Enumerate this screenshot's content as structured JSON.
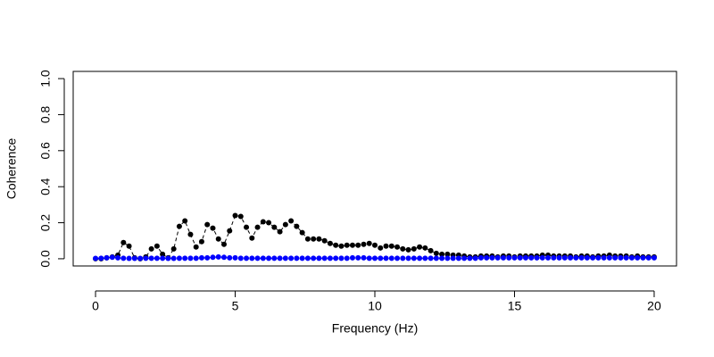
{
  "chart_data": {
    "type": "scatter",
    "xlabel": "Frequency (Hz)",
    "ylabel": "Coherence",
    "x": [
      0,
      0.2,
      0.4,
      0.6,
      0.8,
      1,
      1.2,
      1.4,
      1.6,
      1.8,
      2,
      2.2,
      2.4,
      2.6,
      2.8,
      3,
      3.2,
      3.4,
      3.6,
      3.8,
      4,
      4.2,
      4.4,
      4.6,
      4.8,
      5,
      5.2,
      5.4,
      5.6,
      5.8,
      6,
      6.2,
      6.4,
      6.6,
      6.8,
      7,
      7.2,
      7.4,
      7.6,
      7.8,
      8,
      8.2,
      8.4,
      8.6,
      8.8,
      9,
      9.2,
      9.4,
      9.6,
      9.8,
      10,
      10.2,
      10.4,
      10.6,
      10.8,
      11,
      11.2,
      11.4,
      11.6,
      11.8,
      12,
      12.2,
      12.4,
      12.6,
      12.8,
      13,
      13.2,
      13.4,
      13.6,
      13.8,
      14,
      14.2,
      14.4,
      14.6,
      14.8,
      15,
      15.2,
      15.4,
      15.6,
      15.8,
      16,
      16.2,
      16.4,
      16.6,
      16.8,
      17,
      17.2,
      17.4,
      17.6,
      17.8,
      18,
      18.2,
      18.4,
      18.6,
      18.8,
      19,
      19.2,
      19.4,
      19.6,
      19.8,
      20
    ],
    "series": [
      {
        "color": "#000000",
        "values": [
          0,
          0,
          0.005,
          0.01,
          0.02,
          0.09,
          0.07,
          0.005,
          0,
          0.01,
          0.055,
          0.07,
          0.025,
          0.005,
          0.055,
          0.18,
          0.21,
          0.135,
          0.065,
          0.095,
          0.19,
          0.17,
          0.11,
          0.08,
          0.155,
          0.24,
          0.235,
          0.175,
          0.115,
          0.175,
          0.205,
          0.2,
          0.175,
          0.15,
          0.19,
          0.21,
          0.18,
          0.145,
          0.11,
          0.11,
          0.11,
          0.1,
          0.085,
          0.075,
          0.07,
          0.075,
          0.075,
          0.075,
          0.08,
          0.085,
          0.075,
          0.06,
          0.07,
          0.07,
          0.065,
          0.055,
          0.05,
          0.055,
          0.065,
          0.06,
          0.045,
          0.03,
          0.025,
          0.025,
          0.02,
          0.02,
          0.015,
          0.01,
          0.01,
          0.015,
          0.015,
          0.015,
          0.01,
          0.015,
          0.015,
          0.01,
          0.015,
          0.015,
          0.015,
          0.015,
          0.02,
          0.02,
          0.015,
          0.015,
          0.015,
          0.015,
          0.01,
          0.015,
          0.015,
          0.01,
          0.015,
          0.015,
          0.02,
          0.015,
          0.015,
          0.015,
          0.01,
          0.015,
          0.01,
          0.01,
          0.01
        ]
      },
      {
        "color": "#0000ff",
        "values": [
          0.002,
          0.003,
          0.005,
          0.008,
          0.005,
          0.003,
          0.002,
          0.002,
          0.002,
          0.003,
          0.003,
          0.003,
          0.003,
          0.002,
          0.002,
          0.003,
          0.003,
          0.003,
          0.003,
          0.005,
          0.005,
          0.008,
          0.01,
          0.008,
          0.005,
          0.005,
          0.003,
          0.003,
          0.003,
          0.003,
          0.003,
          0.003,
          0.003,
          0.003,
          0.003,
          0.003,
          0.003,
          0.003,
          0.003,
          0.003,
          0.003,
          0.003,
          0.003,
          0.003,
          0.003,
          0.003,
          0.005,
          0.005,
          0.005,
          0.003,
          0.003,
          0.003,
          0.003,
          0.003,
          0.003,
          0.003,
          0.003,
          0.003,
          0.003,
          0.003,
          0.003,
          0.003,
          0.003,
          0.003,
          0.003,
          0.003,
          0.003,
          0.003,
          0.003,
          0.005,
          0.005,
          0.005,
          0.005,
          0.005,
          0.005,
          0.005,
          0.005,
          0.005,
          0.005,
          0.005,
          0.005,
          0.005,
          0.005,
          0.005,
          0.005,
          0.005,
          0.005,
          0.005,
          0.005,
          0.005,
          0.005,
          0.005,
          0.005,
          0.005,
          0.005,
          0.005,
          0.005,
          0.005,
          0.005,
          0.005,
          0.005
        ]
      }
    ],
    "xlim": [
      -0.8,
      20.8
    ],
    "ylim": [
      -0.04,
      1.04
    ],
    "xticks": [
      0,
      5,
      10,
      15,
      20
    ],
    "yticks": [
      {
        "value": 0,
        "label": "0.0"
      },
      0.2,
      0.4,
      0.6,
      0.8,
      {
        "value": 1,
        "label": "1.0"
      }
    ]
  }
}
